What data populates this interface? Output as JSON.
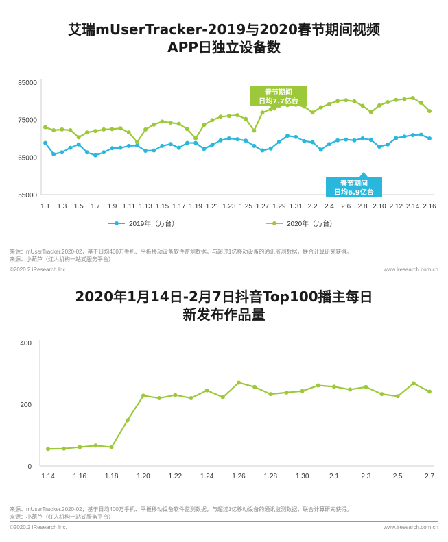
{
  "chart1": {
    "title_line1": "艾瑞mUserTracker-2019与2020春节期间视频",
    "title_line2": "APP日独立设备数",
    "chart_data": {
      "type": "line",
      "title": "艾瑞mUserTracker-2019与2020春节期间视频APP日独立设备数",
      "ylim": [
        55000,
        85000
      ],
      "yticks": [
        55000,
        65000,
        75000,
        85000
      ],
      "grid": false,
      "legend_position": "bottom",
      "x": [
        "1.1",
        "1.2",
        "1.3",
        "1.4",
        "1.5",
        "1.6",
        "1.7",
        "1.8",
        "1.9",
        "1.10",
        "1.11",
        "1.12",
        "1.13",
        "1.14",
        "1.15",
        "1.16",
        "1.17",
        "1.18",
        "1.19",
        "1.20",
        "1.21",
        "1.22",
        "1.23",
        "1.24",
        "1.25",
        "1.26",
        "1.27",
        "1.28",
        "1.29",
        "1.30",
        "1.31",
        "2.1",
        "2.2",
        "2.3",
        "2.4",
        "2.5",
        "2.6",
        "2.7",
        "2.8",
        "2.9",
        "2.10",
        "2.11",
        "2.12",
        "2.13",
        "2.14",
        "2.15",
        "2.16"
      ],
      "x_tick_labels": [
        "1.1",
        "1.3",
        "1.5",
        "1.7",
        "1.9",
        "1.11",
        "1.13",
        "1.15",
        "1.17",
        "1.19",
        "1.21",
        "1.23",
        "1.25",
        "1.27",
        "1.29",
        "1.31",
        "2.2",
        "2.4",
        "2.6",
        "2.8",
        "2.10",
        "2.12",
        "2.14",
        "2.16"
      ],
      "series": [
        {
          "name": "2019年（万台）",
          "color": "#29b7dd",
          "values": [
            68800,
            65800,
            66300,
            67500,
            68400,
            66300,
            65500,
            66300,
            67400,
            67500,
            68000,
            68100,
            66700,
            66800,
            68000,
            68500,
            67500,
            68800,
            68800,
            67200,
            68300,
            69500,
            70000,
            69800,
            69400,
            68000,
            66800,
            67300,
            69100,
            70700,
            70400,
            69300,
            69000,
            67000,
            68500,
            69500,
            69700,
            69500,
            70000,
            69600,
            67800,
            68400,
            70100,
            70500,
            70900,
            71000,
            70000
          ]
        },
        {
          "name": "2020年（万台）",
          "color": "#9cc83a",
          "values": [
            73000,
            72200,
            72400,
            72200,
            70300,
            71600,
            72000,
            72400,
            72500,
            72700,
            71600,
            69000,
            72400,
            73700,
            74500,
            74200,
            73900,
            72500,
            70000,
            73600,
            74900,
            75800,
            76000,
            76200,
            75200,
            72100,
            76900,
            77800,
            78700,
            78900,
            79000,
            78500,
            76900,
            78300,
            79200,
            80000,
            80200,
            79900,
            78700,
            77000,
            78800,
            79700,
            80300,
            80500,
            80800,
            79500,
            77300
          ]
        }
      ],
      "annotations": [
        {
          "line1": "春节期间",
          "line2": "日均7.7亿台",
          "color": "#9cc83a"
        },
        {
          "line1": "春节期间",
          "line2": "日均6.9亿台",
          "color": "#29b7dd"
        }
      ]
    },
    "source_line1": "来源：mUserTracker.2020-02，基于日均400万手机、平板移动设备软件监测数据，与超过1亿移动设备的通讯监测数据，联合计算研究获得。",
    "source_line2": "来源：小葫芦（红人机构一站式服务平台）",
    "copyright": "©2020.2 iResearch Inc.",
    "website": "www.iresearch.com.cn"
  },
  "chart2": {
    "title_line1": "2020年1月14日-2月7日抖音Top100播主每日",
    "title_line2": "新发布作品量",
    "chart_data": {
      "type": "line",
      "title": "2020年1月14日-2月7日抖音Top100播主每日新发布作品量",
      "ylim": [
        0,
        400
      ],
      "yticks": [
        0,
        200,
        400
      ],
      "grid": false,
      "x": [
        "1.14",
        "1.15",
        "1.16",
        "1.17",
        "1.18",
        "1.19",
        "1.20",
        "1.21",
        "1.22",
        "1.23",
        "1.24",
        "1.25",
        "1.26",
        "1.27",
        "1.28",
        "1.29",
        "1.30",
        "1.31",
        "2.1",
        "2.2",
        "2.3",
        "2.4",
        "2.5",
        "2.6",
        "2.7"
      ],
      "x_tick_labels": [
        "1.14",
        "1.16",
        "1.18",
        "1.20",
        "1.22",
        "1.24",
        "1.26",
        "1.28",
        "1.30",
        "2.1",
        "2.3",
        "2.5",
        "2.7"
      ],
      "series": [
        {
          "name": "",
          "color": "#9cc83a",
          "values": [
            55,
            56,
            61,
            66,
            61,
            148,
            228,
            220,
            230,
            220,
            245,
            223,
            270,
            256,
            233,
            238,
            243,
            261,
            257,
            248,
            256,
            233,
            226,
            268,
            241
          ]
        }
      ]
    },
    "source_line1": "来源：mUserTracker.2020-02，基于日均400万手机、平板移动设备软件监测数据，与超过1亿移动设备的通讯监测数据，联合计算研究获得。",
    "source_line2": "来源：小葫芦（红人机构一站式服务平台）",
    "copyright": "©2020.2 iResearch Inc.",
    "website": "www.iresearch.com.cn"
  }
}
